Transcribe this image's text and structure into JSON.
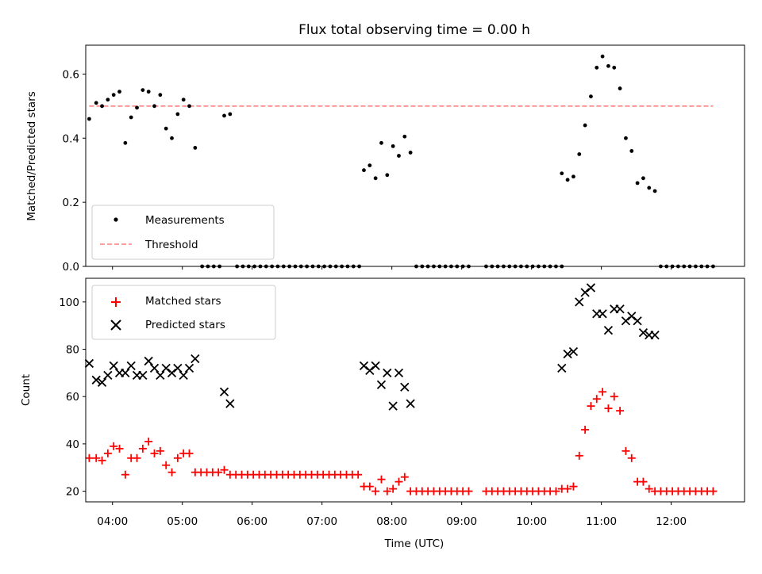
{
  "figure": {
    "title": "Flux total observing time = 0.00 h"
  },
  "chart_data": [
    {
      "type": "scatter",
      "ylabel": "Matched/Predicted stars",
      "xlabel": "",
      "xlim": [
        "03:37",
        "13:03"
      ],
      "ylim": [
        0,
        0.69
      ],
      "yticks": [
        "0.0",
        "0.2",
        "0.4",
        "0.6"
      ],
      "xticks": [
        "04:00",
        "05:00",
        "06:00",
        "07:00",
        "08:00",
        "09:00",
        "10:00",
        "11:00",
        "12:00"
      ],
      "grid": false,
      "legend_position": "lower-left",
      "series": [
        {
          "name": "Measurements",
          "marker": "dot",
          "color": "#000000",
          "points": [
            [
              "03:40",
              0.46
            ],
            [
              "03:46",
              0.51
            ],
            [
              "03:51",
              0.5
            ],
            [
              "03:56",
              0.52
            ],
            [
              "04:01",
              0.535
            ],
            [
              "04:06",
              0.545
            ],
            [
              "04:11",
              0.385
            ],
            [
              "04:16",
              0.465
            ],
            [
              "04:21",
              0.495
            ],
            [
              "04:26",
              0.55
            ],
            [
              "04:31",
              0.545
            ],
            [
              "04:36",
              0.5
            ],
            [
              "04:41",
              0.535
            ],
            [
              "04:46",
              0.43
            ],
            [
              "04:51",
              0.4
            ],
            [
              "04:56",
              0.475
            ],
            [
              "05:01",
              0.52
            ],
            [
              "05:06",
              0.5
            ],
            [
              "05:11",
              0.37
            ],
            [
              "05:36",
              0.47
            ],
            [
              "05:41",
              0.475
            ],
            [
              "05:17",
              0
            ],
            [
              "05:22",
              0
            ],
            [
              "05:27",
              0
            ],
            [
              "05:32",
              0
            ],
            [
              "05:47",
              0
            ],
            [
              "05:52",
              0
            ],
            [
              "05:57",
              0
            ],
            [
              "06:02",
              0
            ],
            [
              "06:07",
              0
            ],
            [
              "06:12",
              0
            ],
            [
              "06:17",
              0
            ],
            [
              "06:22",
              0
            ],
            [
              "06:27",
              0
            ],
            [
              "06:32",
              0
            ],
            [
              "06:37",
              0
            ],
            [
              "06:42",
              0
            ],
            [
              "06:47",
              0
            ],
            [
              "06:52",
              0
            ],
            [
              "06:57",
              0
            ],
            [
              "07:02",
              0
            ],
            [
              "07:07",
              0
            ],
            [
              "07:12",
              0
            ],
            [
              "07:17",
              0
            ],
            [
              "07:22",
              0
            ],
            [
              "07:27",
              0
            ],
            [
              "07:32",
              0
            ],
            [
              "07:36",
              0.3
            ],
            [
              "07:41",
              0.315
            ],
            [
              "07:46",
              0.275
            ],
            [
              "07:51",
              0.385
            ],
            [
              "07:56",
              0.285
            ],
            [
              "08:01",
              0.375
            ],
            [
              "08:06",
              0.345
            ],
            [
              "08:11",
              0.405
            ],
            [
              "08:16",
              0.355
            ],
            [
              "08:21",
              0
            ],
            [
              "08:26",
              0
            ],
            [
              "08:31",
              0
            ],
            [
              "08:36",
              0
            ],
            [
              "08:41",
              0
            ],
            [
              "08:46",
              0
            ],
            [
              "08:51",
              0
            ],
            [
              "08:56",
              0
            ],
            [
              "09:01",
              0
            ],
            [
              "09:06",
              0
            ],
            [
              "09:21",
              0
            ],
            [
              "09:26",
              0
            ],
            [
              "09:31",
              0
            ],
            [
              "09:36",
              0
            ],
            [
              "09:41",
              0
            ],
            [
              "09:46",
              0
            ],
            [
              "09:51",
              0
            ],
            [
              "09:56",
              0
            ],
            [
              "10:01",
              0
            ],
            [
              "10:06",
              0
            ],
            [
              "10:11",
              0
            ],
            [
              "10:16",
              0
            ],
            [
              "10:21",
              0
            ],
            [
              "10:26",
              0
            ],
            [
              "10:26",
              0.29
            ],
            [
              "10:31",
              0.27
            ],
            [
              "10:36",
              0.28
            ],
            [
              "10:41",
              0.35
            ],
            [
              "10:46",
              0.44
            ],
            [
              "10:51",
              0.53
            ],
            [
              "10:56",
              0.62
            ],
            [
              "11:01",
              0.655
            ],
            [
              "11:06",
              0.625
            ],
            [
              "11:11",
              0.62
            ],
            [
              "11:16",
              0.555
            ],
            [
              "11:21",
              0.4
            ],
            [
              "11:26",
              0.36
            ],
            [
              "11:31",
              0.26
            ],
            [
              "11:36",
              0.275
            ],
            [
              "11:41",
              0.245
            ],
            [
              "11:46",
              0.235
            ],
            [
              "11:51",
              0
            ],
            [
              "11:56",
              0
            ],
            [
              "12:01",
              0
            ],
            [
              "12:06",
              0
            ],
            [
              "12:11",
              0
            ],
            [
              "12:16",
              0
            ],
            [
              "12:21",
              0
            ],
            [
              "12:26",
              0
            ],
            [
              "12:31",
              0
            ],
            [
              "12:36",
              0
            ]
          ]
        },
        {
          "name": "Threshold",
          "type": "line",
          "style": "dashed",
          "color": "#ff7f7f",
          "points": [
            [
              "03:40",
              0.5
            ],
            [
              "12:36",
              0.5
            ]
          ]
        }
      ]
    },
    {
      "type": "scatter",
      "ylabel": "Count",
      "xlabel": "Time (UTC)",
      "xlim": [
        "03:37",
        "13:03"
      ],
      "ylim": [
        15.5,
        110
      ],
      "yticks": [
        "20",
        "40",
        "60",
        "80",
        "100"
      ],
      "xticks": [
        "04:00",
        "05:00",
        "06:00",
        "07:00",
        "08:00",
        "09:00",
        "10:00",
        "11:00",
        "12:00"
      ],
      "grid": false,
      "legend_position": "upper-left",
      "series": [
        {
          "name": "Matched stars",
          "marker": "plus",
          "color": "#ff0000",
          "points": [
            [
              "03:40",
              34
            ],
            [
              "03:46",
              34
            ],
            [
              "03:51",
              33
            ],
            [
              "03:56",
              36
            ],
            [
              "04:01",
              39
            ],
            [
              "04:06",
              38
            ],
            [
              "04:11",
              27
            ],
            [
              "04:16",
              34
            ],
            [
              "04:21",
              34
            ],
            [
              "04:26",
              38
            ],
            [
              "04:31",
              41
            ],
            [
              "04:36",
              36
            ],
            [
              "04:41",
              37
            ],
            [
              "04:46",
              31
            ],
            [
              "04:51",
              28
            ],
            [
              "04:56",
              34
            ],
            [
              "05:01",
              36
            ],
            [
              "05:06",
              36
            ],
            [
              "05:11",
              28
            ],
            [
              "05:16",
              28
            ],
            [
              "05:21",
              28
            ],
            [
              "05:26",
              28
            ],
            [
              "05:31",
              28
            ],
            [
              "05:36",
              29
            ],
            [
              "05:41",
              27
            ],
            [
              "05:46",
              27
            ],
            [
              "05:51",
              27
            ],
            [
              "05:56",
              27
            ],
            [
              "06:01",
              27
            ],
            [
              "06:06",
              27
            ],
            [
              "06:11",
              27
            ],
            [
              "06:16",
              27
            ],
            [
              "06:21",
              27
            ],
            [
              "06:26",
              27
            ],
            [
              "06:31",
              27
            ],
            [
              "06:36",
              27
            ],
            [
              "06:41",
              27
            ],
            [
              "06:46",
              27
            ],
            [
              "06:51",
              27
            ],
            [
              "06:56",
              27
            ],
            [
              "07:01",
              27
            ],
            [
              "07:06",
              27
            ],
            [
              "07:11",
              27
            ],
            [
              "07:16",
              27
            ],
            [
              "07:21",
              27
            ],
            [
              "07:26",
              27
            ],
            [
              "07:31",
              27
            ],
            [
              "07:36",
              22
            ],
            [
              "07:41",
              22
            ],
            [
              "07:46",
              20
            ],
            [
              "07:51",
              25
            ],
            [
              "07:56",
              20
            ],
            [
              "08:01",
              21
            ],
            [
              "08:06",
              24
            ],
            [
              "08:11",
              26
            ],
            [
              "08:16",
              20
            ],
            [
              "08:21",
              20
            ],
            [
              "08:26",
              20
            ],
            [
              "08:31",
              20
            ],
            [
              "08:36",
              20
            ],
            [
              "08:41",
              20
            ],
            [
              "08:46",
              20
            ],
            [
              "08:51",
              20
            ],
            [
              "08:56",
              20
            ],
            [
              "09:01",
              20
            ],
            [
              "09:06",
              20
            ],
            [
              "09:21",
              20
            ],
            [
              "09:26",
              20
            ],
            [
              "09:31",
              20
            ],
            [
              "09:36",
              20
            ],
            [
              "09:41",
              20
            ],
            [
              "09:46",
              20
            ],
            [
              "09:51",
              20
            ],
            [
              "09:56",
              20
            ],
            [
              "10:01",
              20
            ],
            [
              "10:06",
              20
            ],
            [
              "10:11",
              20
            ],
            [
              "10:16",
              20
            ],
            [
              "10:21",
              20
            ],
            [
              "10:26",
              21
            ],
            [
              "10:31",
              21
            ],
            [
              "10:36",
              22
            ],
            [
              "10:41",
              35
            ],
            [
              "10:46",
              46
            ],
            [
              "10:51",
              56
            ],
            [
              "10:56",
              59
            ],
            [
              "11:01",
              62
            ],
            [
              "11:06",
              55
            ],
            [
              "11:11",
              60
            ],
            [
              "11:16",
              54
            ],
            [
              "11:21",
              37
            ],
            [
              "11:26",
              34
            ],
            [
              "11:31",
              24
            ],
            [
              "11:36",
              24
            ],
            [
              "11:41",
              21
            ],
            [
              "11:46",
              20
            ],
            [
              "11:51",
              20
            ],
            [
              "11:56",
              20
            ],
            [
              "12:01",
              20
            ],
            [
              "12:06",
              20
            ],
            [
              "12:11",
              20
            ],
            [
              "12:16",
              20
            ],
            [
              "12:21",
              20
            ],
            [
              "12:26",
              20
            ],
            [
              "12:31",
              20
            ],
            [
              "12:36",
              20
            ]
          ]
        },
        {
          "name": "Predicted stars",
          "marker": "x",
          "color": "#000000",
          "points": [
            [
              "03:40",
              74
            ],
            [
              "03:46",
              67
            ],
            [
              "03:51",
              66
            ],
            [
              "03:56",
              69
            ],
            [
              "04:01",
              73
            ],
            [
              "04:06",
              70
            ],
            [
              "04:11",
              70
            ],
            [
              "04:16",
              73
            ],
            [
              "04:21",
              69
            ],
            [
              "04:26",
              69
            ],
            [
              "04:31",
              75
            ],
            [
              "04:36",
              72
            ],
            [
              "04:41",
              69
            ],
            [
              "04:46",
              72
            ],
            [
              "04:51",
              70
            ],
            [
              "04:56",
              72
            ],
            [
              "05:01",
              69
            ],
            [
              "05:06",
              72
            ],
            [
              "05:11",
              76
            ],
            [
              "05:36",
              62
            ],
            [
              "05:41",
              57
            ],
            [
              "07:36",
              73
            ],
            [
              "07:41",
              71
            ],
            [
              "07:46",
              73
            ],
            [
              "07:51",
              65
            ],
            [
              "07:56",
              70
            ],
            [
              "08:01",
              56
            ],
            [
              "08:06",
              70
            ],
            [
              "08:11",
              64
            ],
            [
              "08:16",
              57
            ],
            [
              "10:26",
              72
            ],
            [
              "10:31",
              78
            ],
            [
              "10:36",
              79
            ],
            [
              "10:41",
              100
            ],
            [
              "10:46",
              104
            ],
            [
              "10:51",
              106
            ],
            [
              "10:56",
              95
            ],
            [
              "11:01",
              95
            ],
            [
              "11:06",
              88
            ],
            [
              "11:11",
              97
            ],
            [
              "11:16",
              97
            ],
            [
              "11:21",
              92
            ],
            [
              "11:26",
              94
            ],
            [
              "11:31",
              92
            ],
            [
              "11:36",
              87
            ],
            [
              "11:41",
              86
            ],
            [
              "11:46",
              86
            ]
          ]
        }
      ]
    }
  ]
}
